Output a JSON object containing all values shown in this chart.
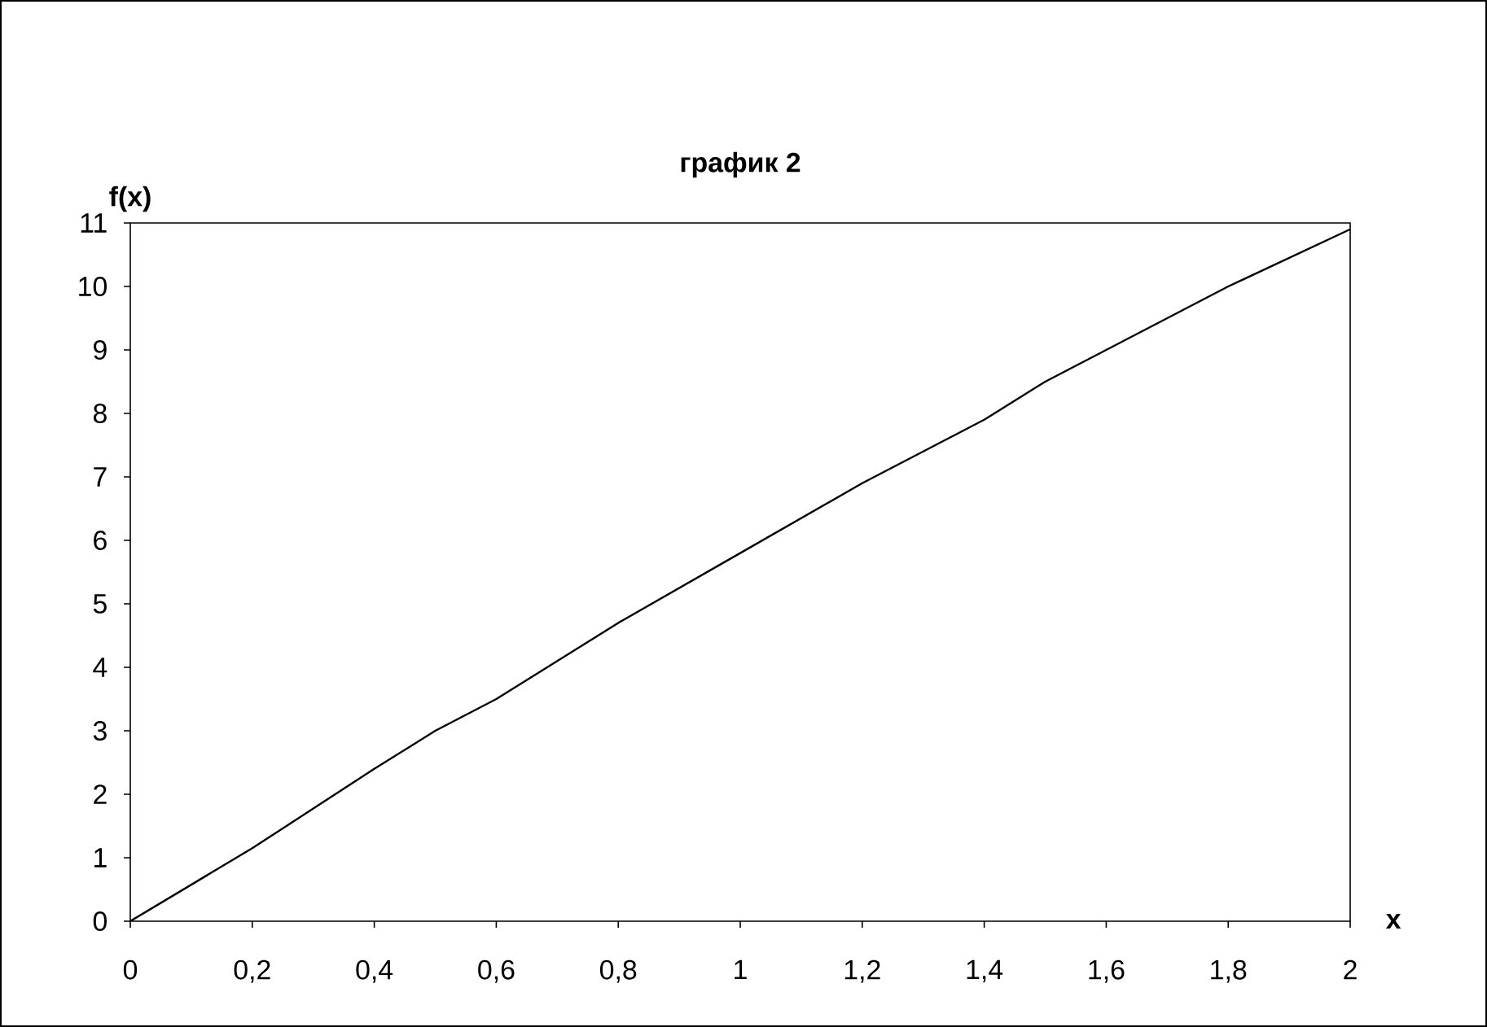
{
  "chart_data": {
    "type": "line",
    "title": "график 2",
    "xlabel": "x",
    "ylabel": "f(x)",
    "x": [
      0,
      0.2,
      0.4,
      0.5,
      0.6,
      0.8,
      1.0,
      1.2,
      1.4,
      1.5,
      1.7,
      1.8,
      2.0
    ],
    "values": [
      0,
      1.15,
      2.4,
      3.0,
      3.5,
      4.7,
      5.8,
      6.9,
      7.9,
      8.5,
      9.5,
      10.0,
      10.9
    ],
    "color": "#000000",
    "xlim": [
      0,
      2
    ],
    "ylim": [
      0,
      11
    ],
    "xticks": [
      0,
      {
        "value": 0.2,
        "label": "0,2"
      },
      {
        "value": 0.4,
        "label": "0,4"
      },
      {
        "value": 0.6,
        "label": "0,6"
      },
      {
        "value": 0.8,
        "label": "0,8"
      },
      1,
      {
        "value": 1.2,
        "label": "1,2"
      },
      {
        "value": 1.4,
        "label": "1,4"
      },
      {
        "value": 1.6,
        "label": "1,6"
      },
      {
        "value": 1.8,
        "label": "1,8"
      },
      2
    ],
    "yticks": [
      0,
      1,
      2,
      3,
      4,
      5,
      6,
      7,
      8,
      9,
      10,
      11
    ],
    "grid": false,
    "marker": "none",
    "line_style": "solid"
  }
}
